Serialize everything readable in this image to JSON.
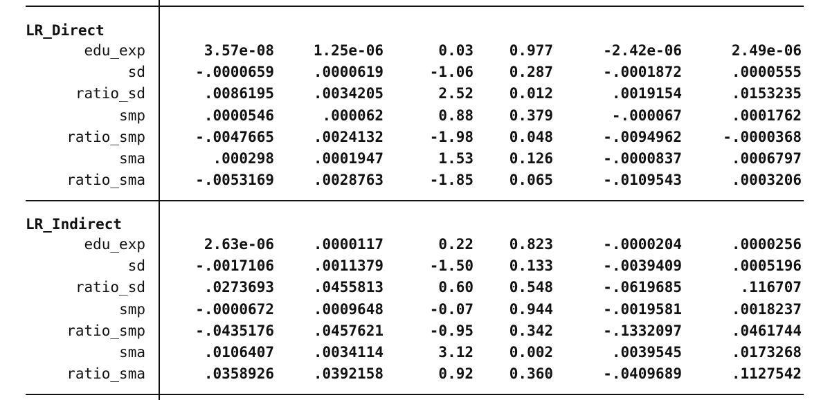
{
  "sections": [
    {
      "title": "LR_Direct",
      "rows": [
        {
          "label": "edu_exp",
          "cells": [
            "3.57e-08",
            "1.25e-06",
            "0.03",
            "0.977",
            "-2.42e-06",
            "2.49e-06"
          ]
        },
        {
          "label": "sd",
          "cells": [
            "-.0000659",
            ".0000619",
            "-1.06",
            "0.287",
            "-.0001872",
            ".0000555"
          ]
        },
        {
          "label": "ratio_sd",
          "cells": [
            ".0086195",
            ".0034205",
            "2.52",
            "0.012",
            ".0019154",
            ".0153235"
          ]
        },
        {
          "label": "smp",
          "cells": [
            ".0000546",
            ".000062",
            "0.88",
            "0.379",
            "-.000067",
            ".0001762"
          ]
        },
        {
          "label": "ratio_smp",
          "cells": [
            "-.0047665",
            ".0024132",
            "-1.98",
            "0.048",
            "-.0094962",
            "-.0000368"
          ]
        },
        {
          "label": "sma",
          "cells": [
            ".000298",
            ".0001947",
            "1.53",
            "0.126",
            "-.0000837",
            ".0006797"
          ]
        },
        {
          "label": "ratio_sma",
          "cells": [
            "-.0053169",
            ".0028763",
            "-1.85",
            "0.065",
            "-.0109543",
            ".0003206"
          ]
        }
      ]
    },
    {
      "title": "LR_Indirect",
      "rows": [
        {
          "label": "edu_exp",
          "cells": [
            "2.63e-06",
            ".0000117",
            "0.22",
            "0.823",
            "-.0000204",
            ".0000256"
          ]
        },
        {
          "label": "sd",
          "cells": [
            "-.0017106",
            ".0011379",
            "-1.50",
            "0.133",
            "-.0039409",
            ".0005196"
          ]
        },
        {
          "label": "ratio_sd",
          "cells": [
            ".0273693",
            ".0455813",
            "0.60",
            "0.548",
            "-.0619685",
            ".116707"
          ]
        },
        {
          "label": "smp",
          "cells": [
            "-.0000672",
            ".0009648",
            "-0.07",
            "0.944",
            "-.0019581",
            ".0018237"
          ]
        },
        {
          "label": "ratio_smp",
          "cells": [
            "-.0435176",
            ".0457621",
            "-0.95",
            "0.342",
            "-.1332097",
            ".0461744"
          ]
        },
        {
          "label": "sma",
          "cells": [
            ".0106407",
            ".0034114",
            "3.12",
            "0.002",
            ".0039545",
            ".0173268"
          ]
        },
        {
          "label": "ratio_sma",
          "cells": [
            ".0358926",
            ".0392158",
            "0.92",
            "0.360",
            "-.0409689",
            ".1127542"
          ]
        }
      ]
    }
  ]
}
